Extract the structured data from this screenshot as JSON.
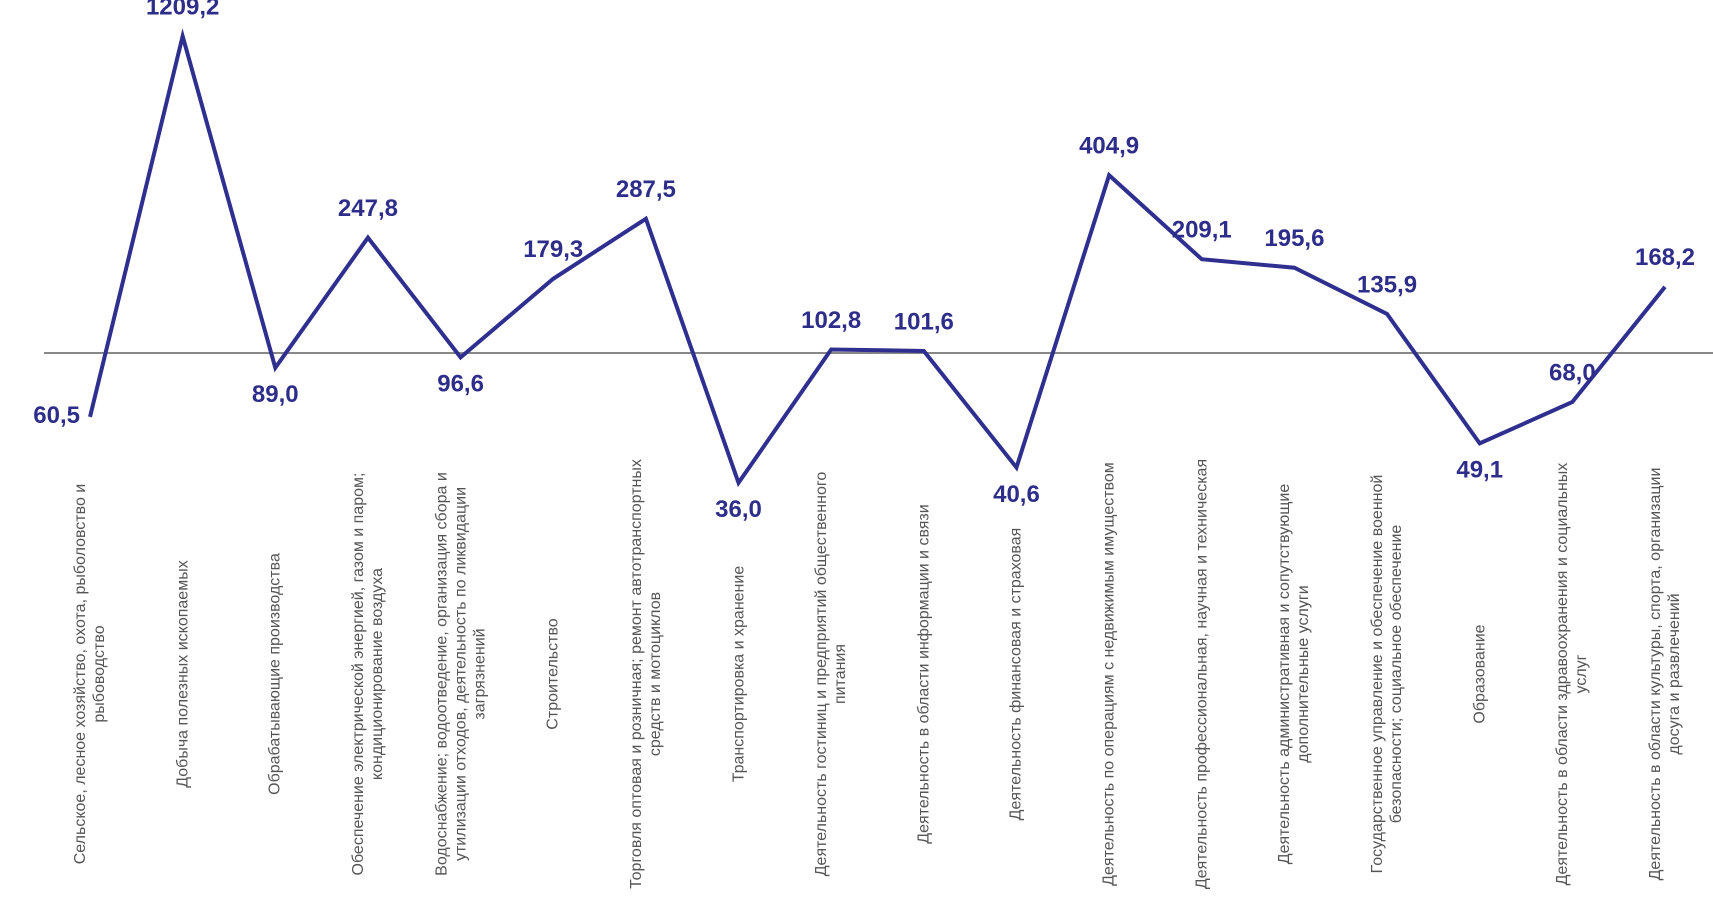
{
  "chart_data": {
    "type": "line",
    "log_scale": true,
    "categories": [
      "Сельское, лесное хозяйство, охота, рыболовство и рыбоводство",
      "Добыча полезных ископаемых",
      "Обрабатывающие производства",
      "Обеспечение электрической энергией, газом и паром; кондиционирование воздуха",
      "Водоснабжение; водоотведение, организация сбора и утилизации отходов, деятельность по ликвидации загрязнений",
      "Строительство",
      "Торговля оптовая и розничная; ремонт автотранспортных средств и мотоциклов",
      "Транспортировка и хранение",
      "Деятельность гостиниц и предприятий общественного питания",
      "Деятельность в области информации и связи",
      "Деятельность финансовая и страховая",
      "Деятельность по операциям с недвижимым имуществом",
      "Деятельность профессиональная, научная и техническая",
      "Деятельность административная и сопутствующие дополнительные услуги",
      "Государственное управление и обеспечение военной безопасности; социальное обеспечение",
      "Образование",
      "Деятельность в области здравоохранения и социальных услуг",
      "Деятельность в области культуры, спорта, организации досуга и развлечений"
    ],
    "series": [
      {
        "color": "#2f2f8f",
        "values": [
          60.5,
          1209.2,
          89.0,
          247.8,
          96.6,
          179.3,
          287.5,
          36.0,
          102.8,
          101.6,
          40.6,
          404.9,
          209.1,
          195.6,
          135.9,
          49.1,
          68.0,
          168.2
        ],
        "value_labels": [
          "60,5",
          "1209,2",
          "89,0",
          "247,8",
          "96,6",
          "179,3",
          "287,5",
          "36,0",
          "102,8",
          "101,6",
          "40,6",
          "404,9",
          "209,1",
          "195,6",
          "135,9",
          "49,1",
          "68,0",
          "168,2"
        ]
      }
    ],
    "ylim": [
      30,
      1300
    ],
    "reference_line": 100
  }
}
